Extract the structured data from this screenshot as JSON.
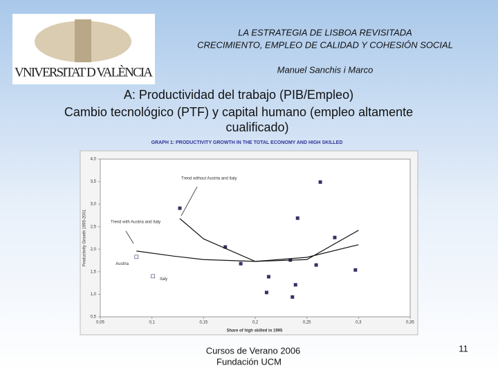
{
  "header": {
    "line1": "LA ESTRATEGIA DE LISBOA REVISITADA",
    "line2": "CRECIMIENTO, EMPLEO DE CALIDAD Y COHESIÓN SOCIAL",
    "author": "Manuel Sanchis i Marco",
    "logo": "VNIVERSITAT D VALÈNCIA"
  },
  "heading": [
    "A: Productividad del trabajo (PIB/Empleo)",
    "Cambio tecnológico (PTF) y capital humano (empleo  altamente",
    "cualificado)"
  ],
  "footer": {
    "line1": "Cursos de Verano 2006",
    "line2": "Fundación UCM",
    "page": "11"
  },
  "chart_data": {
    "type": "scatter",
    "title": "GRAPH 1: PRODUCTIVITY GROWTH IN THE TOTAL ECONOMY AND HIGH SKILLED",
    "x_label": "Share of high skilled in 1995",
    "y_label": "Productivity Growth 1995-2001",
    "xlim": [
      0.05,
      0.35
    ],
    "ylim": [
      0.5,
      4.0
    ],
    "xticks": [
      {
        "value": 0.05,
        "label": "0,05"
      },
      {
        "value": 0.1,
        "label": "0,1"
      },
      {
        "value": 0.15,
        "label": "0,15"
      },
      {
        "value": 0.2,
        "label": "0,2"
      },
      {
        "value": 0.25,
        "label": "0,25"
      },
      {
        "value": 0.3,
        "label": "0,3"
      },
      {
        "value": 0.35,
        "label": "0,35"
      }
    ],
    "yticks": [
      {
        "value": 0.5,
        "label": "0,5"
      },
      {
        "value": 1.0,
        "label": "1,0"
      },
      {
        "value": 1.5,
        "label": "1,5"
      },
      {
        "value": 2.0,
        "label": "2,0"
      },
      {
        "value": 2.5,
        "label": "2,5"
      },
      {
        "value": 3.0,
        "label": "3,0"
      },
      {
        "value": 3.5,
        "label": "3,5"
      },
      {
        "value": 4.0,
        "label": "4,0"
      }
    ],
    "series": [
      {
        "color": "#333366",
        "x": [
          0.127,
          0.171,
          0.186,
          0.211,
          0.213,
          0.234,
          0.236,
          0.239,
          0.241,
          0.259,
          0.263,
          0.277,
          0.297
        ],
        "values": [
          2.91,
          2.05,
          1.68,
          1.04,
          1.39,
          1.76,
          0.94,
          1.21,
          2.69,
          1.65,
          3.49,
          2.26,
          1.54
        ]
      },
      {
        "color": "#333366",
        "hollow": true,
        "x": [
          0.085,
          0.101
        ],
        "values": [
          1.83,
          1.4
        ],
        "labels": [
          "Austria",
          "Italy"
        ]
      },
      {
        "name": "Trend with Austria and Italy",
        "line": true,
        "color": "#111111",
        "x": [
          0.085,
          0.12,
          0.15,
          0.2,
          0.25,
          0.3
        ],
        "values": [
          1.96,
          1.85,
          1.77,
          1.73,
          1.82,
          2.1
        ]
      },
      {
        "name": "Trend without Austria and Italy",
        "line": true,
        "color": "#111111",
        "x": [
          0.127,
          0.15,
          0.2,
          0.25,
          0.3
        ],
        "values": [
          2.68,
          2.23,
          1.73,
          1.77,
          2.42
        ]
      }
    ]
  }
}
